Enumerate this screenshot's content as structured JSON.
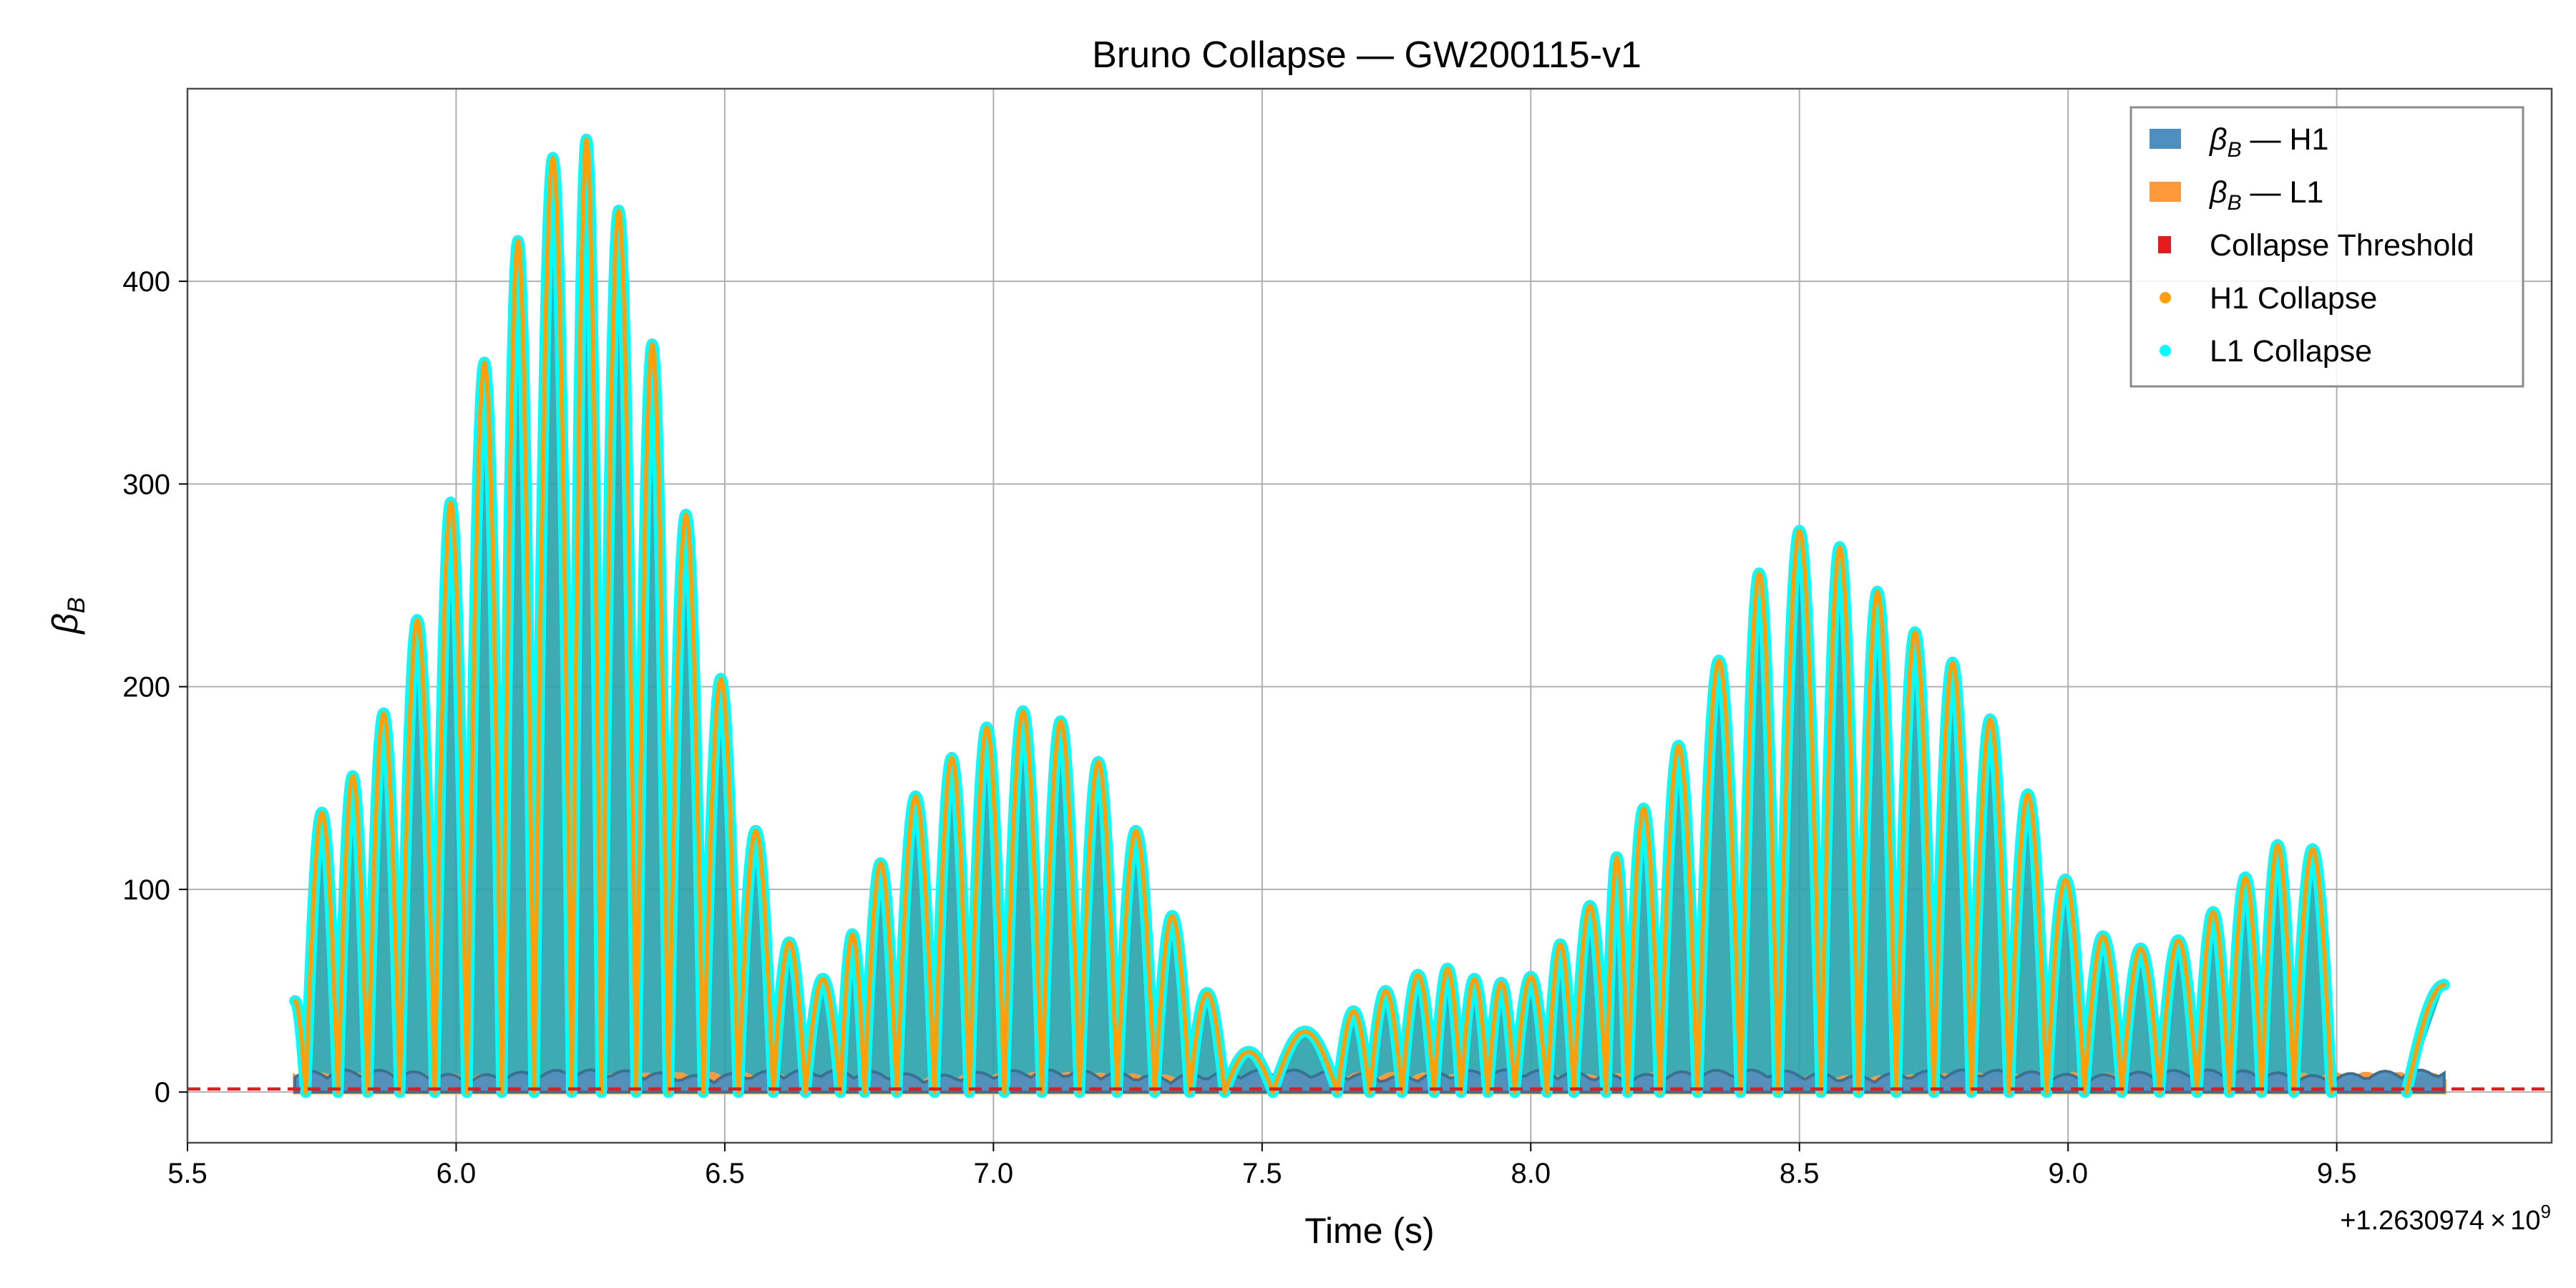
{
  "chart_data": {
    "type": "line",
    "title": "Bruno Collapse — GW200115-v1",
    "xlabel": "Time (s)",
    "ylabel": "βB",
    "ylabel_base": "β",
    "ylabel_sub": "B",
    "x_offset_label": "+1.2630974 × 10⁹",
    "x_offset_base": "+1.2630974",
    "x_offset_times": "×",
    "x_offset_pow": "10",
    "x_offset_exp": "9",
    "xlim": [
      5.5,
      9.9
    ],
    "ylim": [
      -25,
      495
    ],
    "xticks": [
      "5.5",
      "6.0",
      "6.5",
      "7.0",
      "7.5",
      "8.0",
      "8.5",
      "9.0",
      "9.5"
    ],
    "xtick_values": [
      5.5,
      6.0,
      6.5,
      7.0,
      7.5,
      8.0,
      8.5,
      9.0,
      9.5
    ],
    "yticks": [
      "0",
      "100",
      "200",
      "300",
      "400"
    ],
    "ytick_values": [
      0,
      100,
      200,
      300,
      400
    ],
    "grid": true,
    "legend_position": "top-right",
    "threshold": 1.5,
    "colors": {
      "h1": "#4c8fc0",
      "l1": "#ff9a3c",
      "threshold": "#e41a1c",
      "h1_collapse": "#ff9f0a",
      "l1_collapse": "#00ffff",
      "lobe_fill": "#29a1a8"
    },
    "legend": [
      {
        "label_base": "β",
        "label_sub": "B",
        "label_rest": " — H1",
        "marker": "rect",
        "color": "#4c8fc0"
      },
      {
        "label_base": "β",
        "label_sub": "B",
        "label_rest": " — L1",
        "marker": "rect",
        "color": "#ff9a3c"
      },
      {
        "label_base": "",
        "label_sub": "",
        "label_rest": "Collapse Threshold",
        "marker": "square",
        "color": "#e41a1c"
      },
      {
        "label_base": "",
        "label_sub": "",
        "label_rest": "H1 Collapse",
        "marker": "dot",
        "color": "#ff9f0a"
      },
      {
        "label_base": "",
        "label_sub": "",
        "label_rest": "L1 Collapse",
        "marker": "dot",
        "color": "#00ffff"
      }
    ],
    "series": [
      {
        "name": "L1 Collapse",
        "start_x": 5.7,
        "start_y": 45,
        "end_x": 9.7,
        "end_y": 53,
        "zeros": [
          5.72,
          5.78,
          5.835,
          5.895,
          5.96,
          6.02,
          6.085,
          6.145,
          6.215,
          6.27,
          6.335,
          6.395,
          6.46,
          6.525,
          6.59,
          6.65,
          6.715,
          6.76,
          6.82,
          6.89,
          6.955,
          7.02,
          7.09,
          7.16,
          7.23,
          7.3,
          7.365,
          7.43,
          7.52,
          7.64,
          7.7,
          7.76,
          7.82,
          7.87,
          7.92,
          7.97,
          8.03,
          8.08,
          8.14,
          8.18,
          8.24,
          8.31,
          8.39,
          8.46,
          8.54,
          8.61,
          8.68,
          8.75,
          8.82,
          8.89,
          8.96,
          9.03,
          9.1,
          9.17,
          9.24,
          9.3,
          9.36,
          9.42,
          9.49,
          9.55,
          9.63
        ],
        "peaks": [
          138,
          156,
          187,
          233,
          291,
          360,
          420,
          461,
          470,
          435,
          369,
          285,
          204,
          129,
          74,
          56,
          78,
          113,
          146,
          165,
          180,
          188,
          183,
          163,
          129,
          87,
          49,
          20,
          30,
          40,
          50,
          58,
          61,
          56,
          54,
          57,
          73,
          92,
          116,
          140,
          171,
          213,
          256,
          277,
          269,
          247,
          227,
          212,
          184,
          147,
          105,
          77,
          71,
          75,
          89,
          106,
          122,
          120
        ]
      }
    ]
  }
}
